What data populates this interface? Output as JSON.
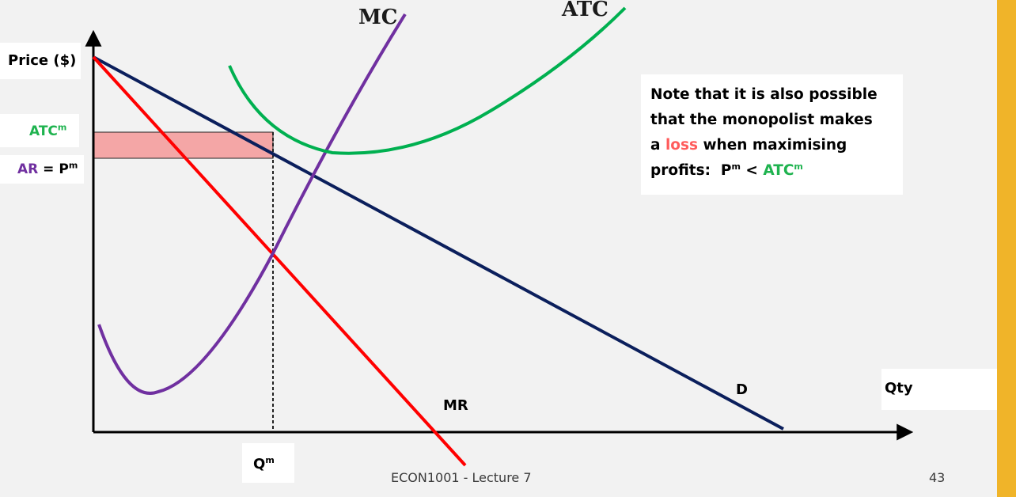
{
  "diagram": {
    "y_axis_label": "Price ($)",
    "x_axis_label": "Qty",
    "atc_m_label": {
      "base": "ATC",
      "sup": "m"
    },
    "ar_pm_label": {
      "ar": "AR",
      "eq": " = ",
      "base": "P",
      "sup": "m"
    },
    "q_m_label": {
      "base": "Q",
      "sup": "m"
    },
    "curves": {
      "mc": "MC",
      "atc": "ATC",
      "demand": "D",
      "mr": "MR"
    }
  },
  "note": {
    "line1": "Note that it is also possible",
    "line2": "that the monopolist makes",
    "line3_pre": "a ",
    "line3_loss": "loss",
    "line3_post": " when maximising",
    "line4_pre": "profits:  P",
    "line4_sup1": "m",
    "line4_mid": " < ",
    "line4_atc": "ATC",
    "line4_sup2": "m"
  },
  "footer": {
    "lecture": "ECON1001 - Lecture 7",
    "page_number": "43"
  },
  "colors": {
    "demand": "#0b1f5c",
    "mr": "#ff0000",
    "mc": "#7030a0",
    "atc": "#00b050",
    "loss_area": "#f4a6a6",
    "accent": "#f0b429"
  }
}
